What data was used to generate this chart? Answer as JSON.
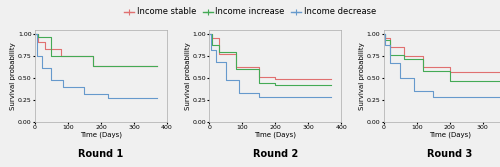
{
  "legend_labels": [
    "Income stable",
    "Income increase",
    "Income decrease"
  ],
  "legend_colors": [
    "#e07070",
    "#44aa55",
    "#6699cc"
  ],
  "panel_titles": [
    "Round 1",
    "Round 2",
    "Round 3"
  ],
  "xlabel": "Time (Days)",
  "ylabel": "Survival probability",
  "xlim": [
    0,
    400
  ],
  "ylim": [
    0.0,
    1.05
  ],
  "yticks": [
    0.0,
    0.25,
    0.5,
    0.75,
    1.0
  ],
  "xticks": [
    0,
    100,
    200,
    300,
    400
  ],
  "round1": {
    "stable": {
      "x": [
        0,
        10,
        10,
        30,
        30,
        80,
        80,
        175,
        175,
        370
      ],
      "y": [
        1.0,
        1.0,
        0.91,
        0.91,
        0.83,
        0.83,
        0.75,
        0.75,
        0.64,
        0.64
      ]
    },
    "increase": {
      "x": [
        0,
        10,
        10,
        50,
        50,
        175,
        175,
        370
      ],
      "y": [
        1.0,
        1.0,
        0.975,
        0.975,
        0.75,
        0.75,
        0.635,
        0.635
      ]
    },
    "decrease": {
      "x": [
        0,
        5,
        5,
        20,
        20,
        50,
        50,
        85,
        85,
        150,
        150,
        220,
        220,
        370
      ],
      "y": [
        1.0,
        1.0,
        0.75,
        0.75,
        0.62,
        0.62,
        0.48,
        0.48,
        0.4,
        0.4,
        0.32,
        0.32,
        0.27,
        0.27
      ]
    }
  },
  "round2": {
    "stable": {
      "x": [
        0,
        8,
        8,
        30,
        30,
        80,
        80,
        150,
        150,
        200,
        200,
        370
      ],
      "y": [
        1.0,
        1.0,
        0.96,
        0.96,
        0.78,
        0.78,
        0.63,
        0.63,
        0.51,
        0.51,
        0.49,
        0.49
      ]
    },
    "increase": {
      "x": [
        0,
        8,
        8,
        30,
        30,
        80,
        80,
        150,
        150,
        200,
        200,
        370
      ],
      "y": [
        1.0,
        1.0,
        0.88,
        0.88,
        0.8,
        0.8,
        0.6,
        0.6,
        0.44,
        0.44,
        0.42,
        0.42
      ]
    },
    "decrease": {
      "x": [
        0,
        5,
        5,
        20,
        20,
        50,
        50,
        90,
        90,
        150,
        150,
        370
      ],
      "y": [
        1.0,
        1.0,
        0.82,
        0.82,
        0.68,
        0.68,
        0.48,
        0.48,
        0.33,
        0.33,
        0.29,
        0.29
      ]
    }
  },
  "round3": {
    "stable": {
      "x": [
        0,
        5,
        5,
        20,
        20,
        60,
        60,
        120,
        120,
        200,
        200,
        370
      ],
      "y": [
        1.0,
        1.0,
        0.96,
        0.96,
        0.86,
        0.86,
        0.75,
        0.75,
        0.63,
        0.63,
        0.57,
        0.57
      ]
    },
    "increase": {
      "x": [
        0,
        5,
        5,
        20,
        20,
        60,
        60,
        120,
        120,
        200,
        200,
        370
      ],
      "y": [
        1.0,
        1.0,
        0.94,
        0.94,
        0.77,
        0.77,
        0.72,
        0.72,
        0.58,
        0.58,
        0.47,
        0.47
      ]
    },
    "decrease": {
      "x": [
        0,
        5,
        5,
        20,
        20,
        50,
        50,
        90,
        90,
        150,
        150,
        370
      ],
      "y": [
        1.0,
        1.0,
        0.88,
        0.88,
        0.67,
        0.67,
        0.5,
        0.5,
        0.35,
        0.35,
        0.29,
        0.29
      ]
    }
  },
  "background_color": "#f0f0f0",
  "title_fontsize": 7,
  "axis_label_fontsize": 5,
  "tick_fontsize": 4.5,
  "legend_fontsize": 6,
  "linewidth": 0.8
}
